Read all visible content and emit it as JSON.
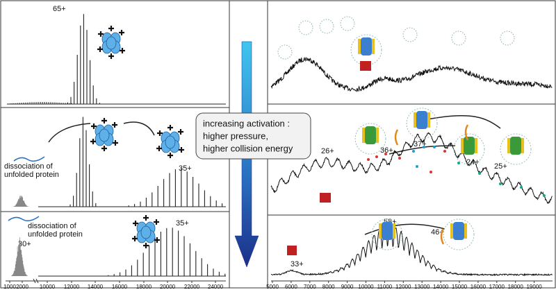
{
  "panels": {
    "left_top": {
      "charge": "65+"
    },
    "left_middle": {
      "charge": "35+",
      "note": [
        "dissociation of",
        "unfolded protein"
      ]
    },
    "left_bottom": {
      "charge_high": "35+",
      "charge_low": "30+",
      "note": [
        "dissociation of",
        "unfolded protein"
      ]
    },
    "right_middle": {
      "charges": [
        "26+",
        "36+",
        "37+",
        "24+",
        "25+"
      ]
    },
    "right_bottom": {
      "charges": [
        "58+",
        "46+",
        "33+"
      ]
    }
  },
  "activation_box": [
    "increasing activation :",
    "higher pressure,",
    "higher collision energy"
  ],
  "left_axis_ticks": [
    "1000",
    "2000",
    "10000",
    "12000",
    "14000",
    "16000",
    "18000",
    "20000",
    "22000",
    "24000"
  ],
  "right_axis_ticks": [
    "5000",
    "6000",
    "7000",
    "8000",
    "9000",
    "10000",
    "11000",
    "12000",
    "13000",
    "14000",
    "15000",
    "16000",
    "17000",
    "18000",
    "19000"
  ]
}
